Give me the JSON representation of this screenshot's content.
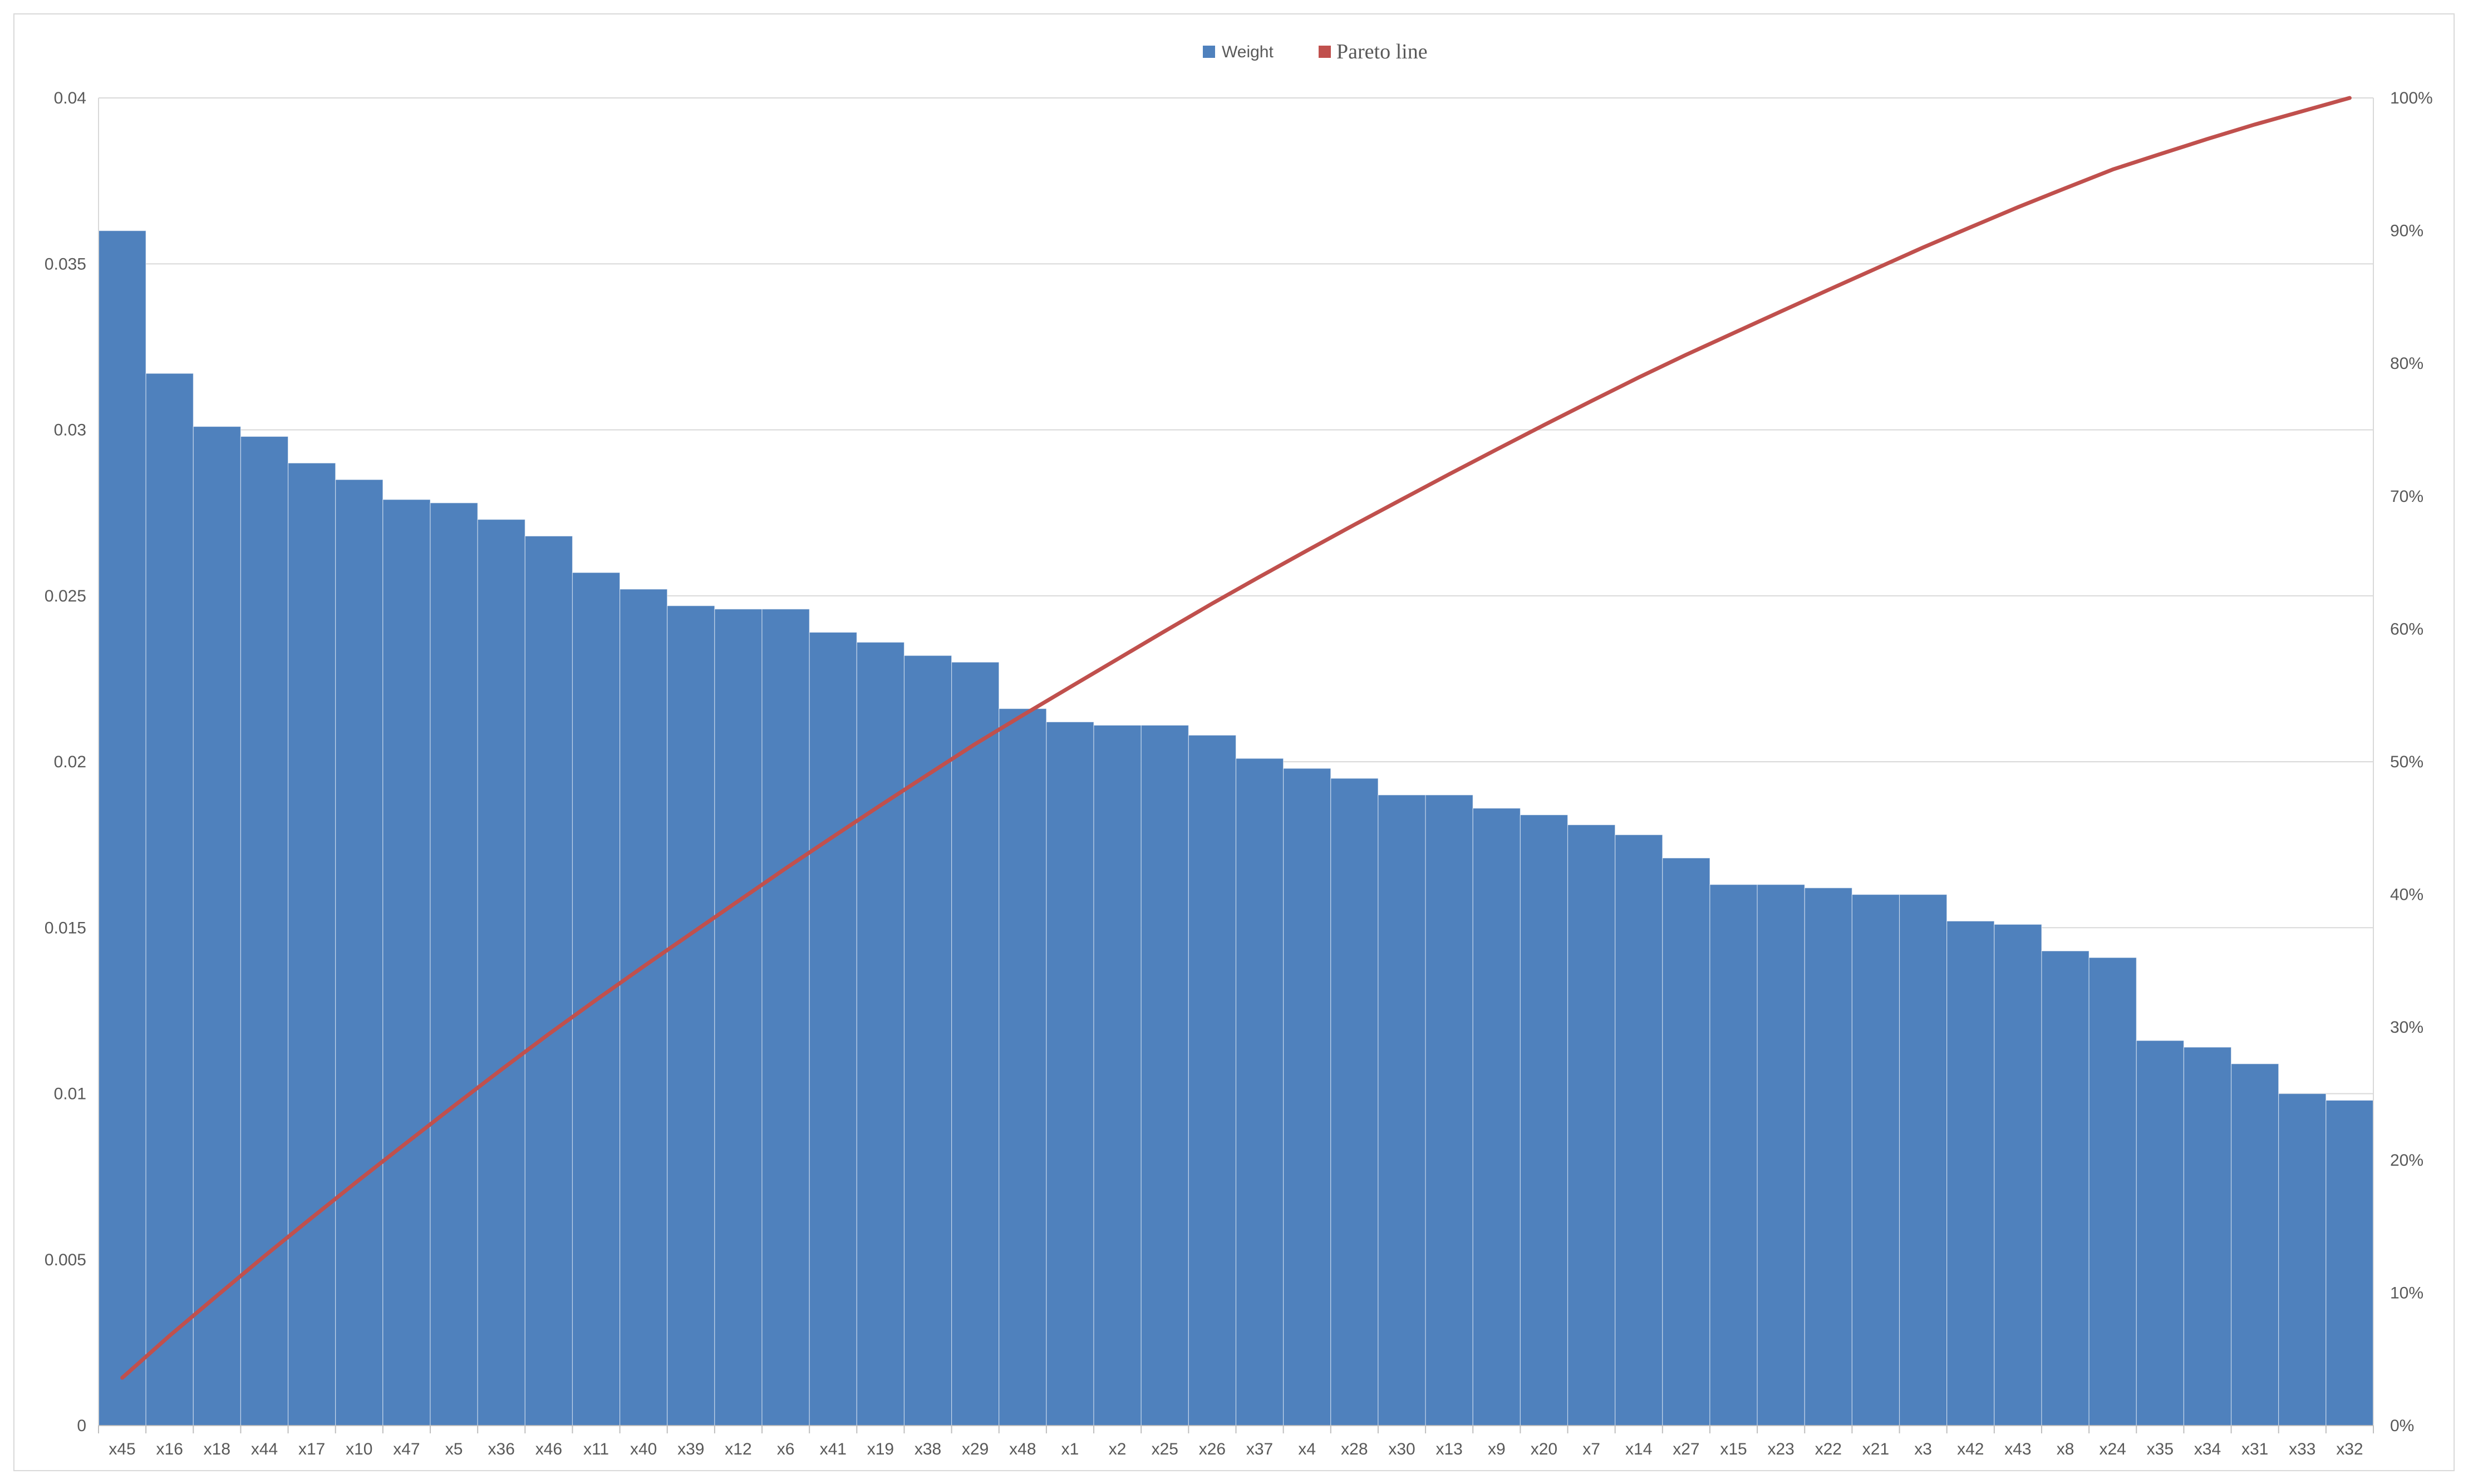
{
  "chart_data": {
    "type": "bar",
    "title": "",
    "xlabel": "",
    "ylabel": "",
    "ylim": [
      0,
      0.04
    ],
    "y2lim": [
      0,
      1
    ],
    "yticks": [
      "0",
      "0.005",
      "0.01",
      "0.015",
      "0.02",
      "0.025",
      "0.03",
      "0.035",
      "0.04"
    ],
    "y2ticks": [
      "0%",
      "10%",
      "20%",
      "30%",
      "40%",
      "50%",
      "60%",
      "70%",
      "80%",
      "90%",
      "100%"
    ],
    "legend_position": "top-center",
    "grid": true,
    "categories": [
      "x45",
      "x16",
      "x18",
      "x44",
      "x17",
      "x10",
      "x47",
      "x5",
      "x36",
      "x46",
      "x11",
      "x40",
      "x39",
      "x12",
      "x6",
      "x41",
      "x19",
      "x38",
      "x29",
      "x48",
      "x1",
      "x2",
      "x25",
      "x26",
      "x37",
      "x4",
      "x28",
      "x30",
      "x13",
      "x9",
      "x20",
      "x7",
      "x14",
      "x27",
      "x15",
      "x23",
      "x22",
      "x21",
      "x3",
      "x42",
      "x43",
      "x8",
      "x24",
      "x35",
      "x34",
      "x31",
      "x33",
      "x32"
    ],
    "series": [
      {
        "name": "Weight",
        "type": "bar",
        "color": "#4f81bd",
        "values": [
          0.036,
          0.0317,
          0.0301,
          0.0298,
          0.029,
          0.0285,
          0.0279,
          0.0278,
          0.0273,
          0.0268,
          0.0257,
          0.0252,
          0.0247,
          0.0246,
          0.0246,
          0.0239,
          0.0236,
          0.0232,
          0.023,
          0.0216,
          0.0212,
          0.0211,
          0.0211,
          0.0208,
          0.0201,
          0.0198,
          0.0195,
          0.019,
          0.019,
          0.0186,
          0.0184,
          0.0181,
          0.0178,
          0.0171,
          0.0163,
          0.0163,
          0.0162,
          0.016,
          0.016,
          0.0152,
          0.0151,
          0.0143,
          0.0141,
          0.0116,
          0.0114,
          0.0109,
          0.01,
          0.0098
        ]
      },
      {
        "name": "Pareto line",
        "type": "line",
        "axis": "secondary",
        "color": "#c0504d",
        "values": [
          0.036,
          0.0677,
          0.0978,
          0.1276,
          0.1566,
          0.1851,
          0.213,
          0.2408,
          0.2681,
          0.2949,
          0.3206,
          0.3458,
          0.3705,
          0.3951,
          0.4197,
          0.4436,
          0.4672,
          0.4904,
          0.5134,
          0.535,
          0.5562,
          0.5773,
          0.5984,
          0.6192,
          0.6393,
          0.6591,
          0.6786,
          0.6976,
          0.7166,
          0.7352,
          0.7536,
          0.7717,
          0.7895,
          0.8066,
          0.8229,
          0.8392,
          0.8554,
          0.8714,
          0.8874,
          0.9026,
          0.9177,
          0.932,
          0.9461,
          0.9577,
          0.9691,
          0.98,
          0.99,
          1.0
        ]
      }
    ]
  }
}
